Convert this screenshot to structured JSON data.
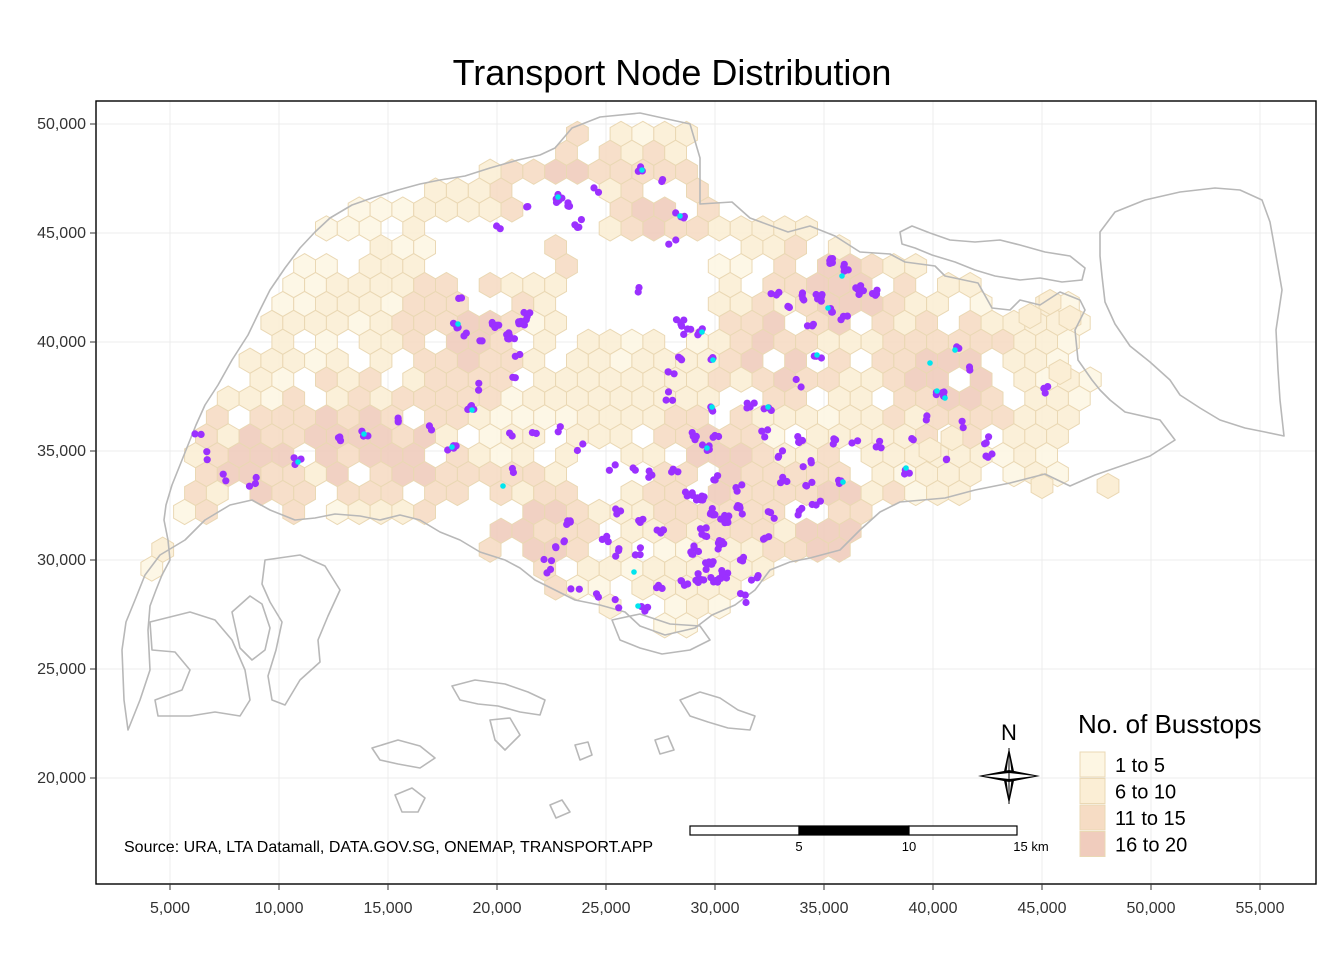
{
  "title": "Transport Node Distribution",
  "axes": {
    "x_ticks": [
      "5,000",
      "10,000",
      "15,000",
      "20,000",
      "25,000",
      "30,000",
      "35,000",
      "40,000",
      "45,000",
      "50,000",
      "55,000"
    ],
    "y_ticks": [
      "50,000",
      "45,000",
      "40,000",
      "35,000",
      "30,000",
      "25,000",
      "20,000"
    ],
    "grid": true
  },
  "legend": {
    "title": "No. of Busstops",
    "items": [
      {
        "label": "1 to 5",
        "color": "#fdf6e3"
      },
      {
        "label": "6 to 10",
        "color": "#fbeed5"
      },
      {
        "label": "11 to 15",
        "color": "#f6dcc4"
      },
      {
        "label": "16 to 20",
        "color": "#f0ccbd"
      }
    ],
    "placement": "bottom-right"
  },
  "north_arrow": {
    "label": "N"
  },
  "scale_bar": {
    "labels": [
      "5",
      "10",
      "15 km"
    ]
  },
  "source": "Source: URA, LTA Datamall, DATA.GOV.SG, ONEMAP, TRANSPORT.APP",
  "colors": {
    "coastline": "#b8b8b8",
    "hex_border": "#ead8b4",
    "busstop": "#9b30ff",
    "mrt": "#00e5ee"
  },
  "map_extent": {
    "x": [
      2600,
      57200
    ],
    "y": [
      13500,
      51000
    ]
  }
}
